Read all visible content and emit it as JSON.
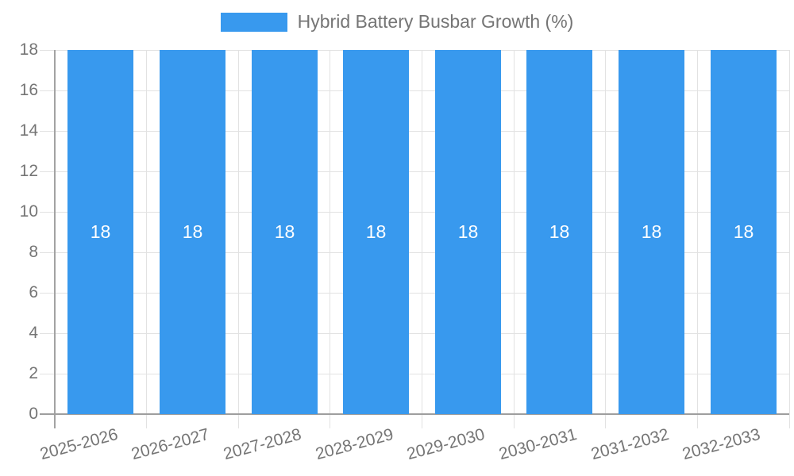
{
  "legend": {
    "swatch_color": "#3899ee"
  },
  "chart_data": {
    "type": "bar",
    "title": "Hybrid Battery Busbar Growth (%)",
    "categories": [
      "2025-2026",
      "2026-2027",
      "2027-2028",
      "2028-2029",
      "2029-2030",
      "2030-2031",
      "2031-2032",
      "2032-2033"
    ],
    "values": [
      18,
      18,
      18,
      18,
      18,
      18,
      18,
      18
    ],
    "bar_labels": [
      "18",
      "18",
      "18",
      "18",
      "18",
      "18",
      "18",
      "18"
    ],
    "xlabel": "",
    "ylabel": "",
    "ylim": [
      0,
      18
    ],
    "yticks": [
      0,
      2,
      4,
      6,
      8,
      10,
      12,
      14,
      16,
      18
    ],
    "grid": true,
    "legend_position": "top",
    "colors": {
      "bar": "#3899ee",
      "grid": "#e2e2e2",
      "axis": "#9e9e9e",
      "tick_text": "#757575",
      "bar_label_text": "#ffffff"
    }
  }
}
